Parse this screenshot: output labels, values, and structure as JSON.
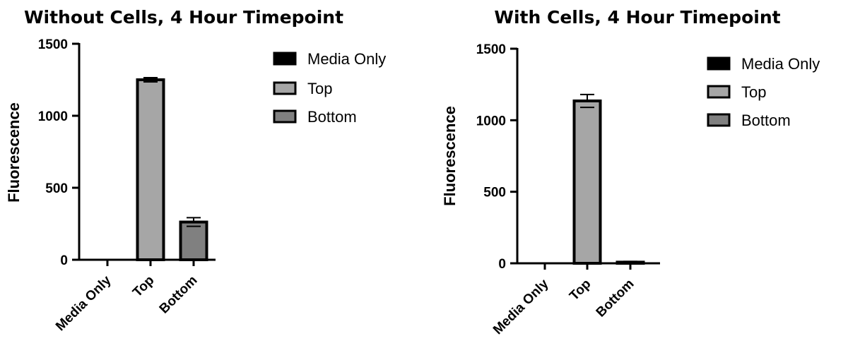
{
  "chart_data": [
    {
      "type": "bar",
      "title": "Without Cells, 4 Hour Timepoint",
      "ylabel": "Fluorescence",
      "xlabel": "",
      "categories": [
        "Media Only",
        "Top",
        "Bottom"
      ],
      "values": [
        0,
        1250,
        262
      ],
      "errors": [
        0,
        15,
        30
      ],
      "colors": [
        "#000000",
        "#a6a6a6",
        "#808080"
      ],
      "ylim": [
        0,
        1500
      ],
      "yticks": [
        0,
        500,
        1000,
        1500
      ],
      "ytick_labels": [
        "0",
        "500",
        "1000",
        "1500"
      ],
      "legend": {
        "placement": "right",
        "entries": [
          "Media Only",
          "Top",
          "Bottom"
        ]
      },
      "grid": false
    },
    {
      "type": "bar",
      "title": "With Cells, 4 Hour Timepoint",
      "ylabel": "Fluorescence",
      "xlabel": "",
      "categories": [
        "Media Only",
        "Top",
        "Bottom"
      ],
      "values": [
        0,
        1135,
        8
      ],
      "errors": [
        0,
        45,
        5
      ],
      "colors": [
        "#000000",
        "#a6a6a6",
        "#808080"
      ],
      "ylim": [
        0,
        1500
      ],
      "yticks": [
        0,
        500,
        1000,
        1500
      ],
      "ytick_labels": [
        "0",
        "500",
        "1000",
        "1500"
      ],
      "legend": {
        "placement": "right",
        "entries": [
          "Media Only",
          "Top",
          "Bottom"
        ]
      },
      "grid": false
    }
  ]
}
